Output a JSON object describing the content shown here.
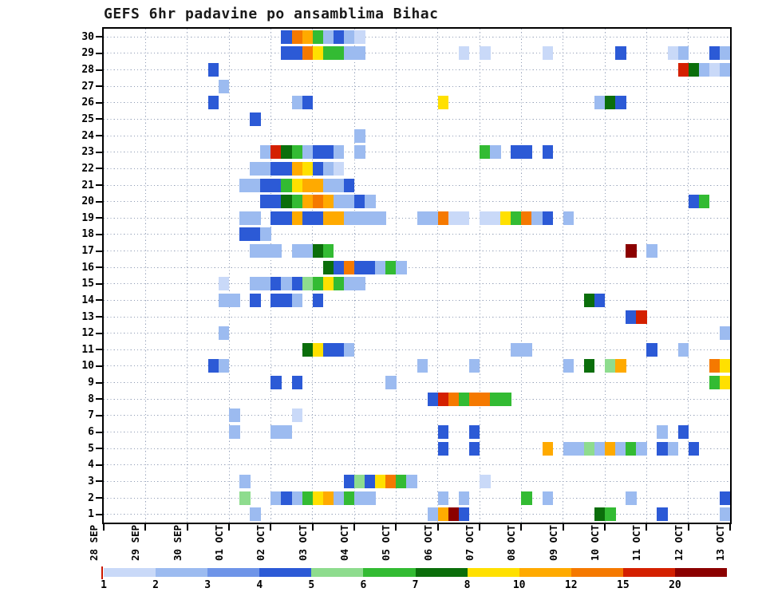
{
  "chart_data": {
    "type": "heatmap",
    "title": "GEFS 6hr padavine po ansamblima Bihac",
    "x_tick_labels": [
      "28 SEP",
      "29 SEP",
      "30 SEP",
      "01 OCT",
      "02 OCT",
      "03 OCT",
      "04 OCT",
      "05 OCT",
      "06 OCT",
      "07 OCT",
      "08 OCT",
      "09 OCT",
      "10 OCT",
      "11 OCT",
      "12 OCT",
      "13 OCT"
    ],
    "y_tick_labels": [
      "30",
      "29",
      "28",
      "27",
      "26",
      "25",
      "24",
      "23",
      "22",
      "21",
      "20",
      "19",
      "18",
      "17",
      "16",
      "15",
      "14",
      "13",
      "12",
      "11",
      "10",
      "9",
      "8",
      "7",
      "6",
      "5",
      "4",
      "3",
      "2",
      "1"
    ],
    "steps_per_day": 4,
    "n_time_steps": 60,
    "grid": "dotted",
    "colorbar": {
      "tick_labels": [
        "1",
        "2",
        "3",
        "4",
        "5",
        "6",
        "7",
        "8",
        "10",
        "12",
        "15",
        "20"
      ],
      "thresholds": [
        1,
        2,
        3,
        4,
        5,
        6,
        7,
        8,
        10,
        12,
        15,
        20
      ],
      "colors": [
        "#c9d9f8",
        "#9cbbf0",
        "#6e94e8",
        "#2c5ad6",
        "#8edc8e",
        "#33bb33",
        "#0b6e0b",
        "#ffe000",
        "#ffaa00",
        "#f57900",
        "#d42000",
        "#8b0000"
      ]
    },
    "cells": [
      [
        30,
        17,
        4
      ],
      [
        30,
        18,
        12
      ],
      [
        30,
        19,
        10
      ],
      [
        30,
        20,
        6
      ],
      [
        30,
        21,
        2
      ],
      [
        30,
        22,
        4
      ],
      [
        30,
        23,
        2
      ],
      [
        30,
        24,
        1
      ],
      [
        29,
        17,
        4
      ],
      [
        29,
        18,
        4
      ],
      [
        29,
        19,
        12
      ],
      [
        29,
        20,
        8
      ],
      [
        29,
        21,
        6
      ],
      [
        29,
        22,
        6
      ],
      [
        29,
        23,
        2
      ],
      [
        29,
        24,
        2
      ],
      [
        29,
        34,
        1
      ],
      [
        29,
        36,
        1
      ],
      [
        29,
        42,
        1
      ],
      [
        29,
        49,
        4
      ],
      [
        29,
        54,
        1
      ],
      [
        29,
        55,
        2
      ],
      [
        29,
        58,
        4
      ],
      [
        29,
        59,
        2
      ],
      [
        28,
        10,
        4
      ],
      [
        28,
        55,
        15
      ],
      [
        28,
        56,
        7
      ],
      [
        28,
        57,
        2
      ],
      [
        28,
        58,
        1
      ],
      [
        28,
        59,
        2
      ],
      [
        27,
        11,
        2
      ],
      [
        26,
        10,
        4
      ],
      [
        26,
        18,
        2
      ],
      [
        26,
        19,
        4
      ],
      [
        26,
        32,
        8
      ],
      [
        26,
        47,
        2
      ],
      [
        26,
        48,
        7
      ],
      [
        26,
        49,
        4
      ],
      [
        25,
        14,
        4
      ],
      [
        24,
        24,
        2
      ],
      [
        23,
        15,
        2
      ],
      [
        23,
        16,
        15
      ],
      [
        23,
        17,
        7
      ],
      [
        23,
        18,
        6
      ],
      [
        23,
        19,
        2
      ],
      [
        23,
        20,
        4
      ],
      [
        23,
        21,
        4
      ],
      [
        23,
        22,
        2
      ],
      [
        23,
        24,
        2
      ],
      [
        23,
        36,
        6
      ],
      [
        23,
        37,
        2
      ],
      [
        23,
        39,
        4
      ],
      [
        23,
        40,
        4
      ],
      [
        23,
        42,
        4
      ],
      [
        22,
        14,
        2
      ],
      [
        22,
        15,
        2
      ],
      [
        22,
        16,
        4
      ],
      [
        22,
        17,
        4
      ],
      [
        22,
        18,
        10
      ],
      [
        22,
        19,
        8
      ],
      [
        22,
        20,
        4
      ],
      [
        22,
        21,
        2
      ],
      [
        22,
        22,
        1
      ],
      [
        21,
        13,
        2
      ],
      [
        21,
        14,
        2
      ],
      [
        21,
        15,
        4
      ],
      [
        21,
        16,
        4
      ],
      [
        21,
        17,
        6
      ],
      [
        21,
        18,
        8
      ],
      [
        21,
        19,
        10
      ],
      [
        21,
        20,
        10
      ],
      [
        21,
        21,
        2
      ],
      [
        21,
        22,
        2
      ],
      [
        21,
        23,
        4
      ],
      [
        20,
        15,
        4
      ],
      [
        20,
        16,
        4
      ],
      [
        20,
        17,
        7
      ],
      [
        20,
        18,
        6
      ],
      [
        20,
        19,
        10
      ],
      [
        20,
        20,
        12
      ],
      [
        20,
        21,
        10
      ],
      [
        20,
        22,
        2
      ],
      [
        20,
        23,
        2
      ],
      [
        20,
        24,
        4
      ],
      [
        20,
        25,
        2
      ],
      [
        20,
        56,
        4
      ],
      [
        20,
        57,
        6
      ],
      [
        19,
        13,
        2
      ],
      [
        19,
        14,
        2
      ],
      [
        19,
        16,
        4
      ],
      [
        19,
        17,
        4
      ],
      [
        19,
        18,
        10
      ],
      [
        19,
        19,
        4
      ],
      [
        19,
        20,
        4
      ],
      [
        19,
        21,
        10
      ],
      [
        19,
        22,
        10
      ],
      [
        19,
        23,
        2
      ],
      [
        19,
        24,
        2
      ],
      [
        19,
        25,
        2
      ],
      [
        19,
        26,
        2
      ],
      [
        19,
        30,
        2
      ],
      [
        19,
        31,
        2
      ],
      [
        19,
        32,
        12
      ],
      [
        19,
        33,
        1
      ],
      [
        19,
        34,
        1
      ],
      [
        19,
        36,
        1
      ],
      [
        19,
        37,
        1
      ],
      [
        19,
        38,
        8
      ],
      [
        19,
        39,
        6
      ],
      [
        19,
        40,
        12
      ],
      [
        19,
        41,
        2
      ],
      [
        19,
        42,
        4
      ],
      [
        19,
        44,
        2
      ],
      [
        18,
        13,
        4
      ],
      [
        18,
        14,
        4
      ],
      [
        18,
        15,
        2
      ],
      [
        17,
        14,
        2
      ],
      [
        17,
        15,
        2
      ],
      [
        17,
        16,
        2
      ],
      [
        17,
        18,
        2
      ],
      [
        17,
        19,
        2
      ],
      [
        17,
        20,
        7
      ],
      [
        17,
        21,
        6
      ],
      [
        17,
        50,
        20
      ],
      [
        17,
        52,
        2
      ],
      [
        16,
        21,
        7
      ],
      [
        16,
        22,
        4
      ],
      [
        16,
        23,
        12
      ],
      [
        16,
        24,
        4
      ],
      [
        16,
        25,
        4
      ],
      [
        16,
        26,
        2
      ],
      [
        16,
        27,
        6
      ],
      [
        16,
        28,
        2
      ],
      [
        15,
        11,
        1
      ],
      [
        15,
        14,
        2
      ],
      [
        15,
        15,
        2
      ],
      [
        15,
        16,
        4
      ],
      [
        15,
        17,
        2
      ],
      [
        15,
        18,
        4
      ],
      [
        15,
        19,
        5
      ],
      [
        15,
        20,
        6
      ],
      [
        15,
        21,
        8
      ],
      [
        15,
        22,
        6
      ],
      [
        15,
        23,
        2
      ],
      [
        15,
        24,
        2
      ],
      [
        14,
        11,
        2
      ],
      [
        14,
        12,
        2
      ],
      [
        14,
        14,
        4
      ],
      [
        14,
        16,
        4
      ],
      [
        14,
        17,
        4
      ],
      [
        14,
        18,
        2
      ],
      [
        14,
        20,
        4
      ],
      [
        14,
        46,
        7
      ],
      [
        14,
        47,
        4
      ],
      [
        13,
        50,
        4
      ],
      [
        13,
        51,
        15
      ],
      [
        12,
        11,
        2
      ],
      [
        12,
        59,
        2
      ],
      [
        11,
        19,
        7
      ],
      [
        11,
        20,
        8
      ],
      [
        11,
        21,
        4
      ],
      [
        11,
        22,
        4
      ],
      [
        11,
        23,
        2
      ],
      [
        11,
        39,
        2
      ],
      [
        11,
        40,
        2
      ],
      [
        11,
        52,
        4
      ],
      [
        11,
        55,
        2
      ],
      [
        10,
        10,
        4
      ],
      [
        10,
        11,
        2
      ],
      [
        10,
        30,
        2
      ],
      [
        10,
        35,
        2
      ],
      [
        10,
        44,
        2
      ],
      [
        10,
        46,
        7
      ],
      [
        10,
        48,
        5
      ],
      [
        10,
        49,
        10
      ],
      [
        10,
        58,
        12
      ],
      [
        10,
        59,
        8
      ],
      [
        9,
        16,
        4
      ],
      [
        9,
        18,
        4
      ],
      [
        9,
        27,
        2
      ],
      [
        9,
        58,
        6
      ],
      [
        9,
        59,
        8
      ],
      [
        8,
        31,
        4
      ],
      [
        8,
        32,
        15
      ],
      [
        8,
        33,
        12
      ],
      [
        8,
        34,
        6
      ],
      [
        8,
        35,
        12
      ],
      [
        8,
        36,
        12
      ],
      [
        8,
        37,
        6
      ],
      [
        8,
        38,
        6
      ],
      [
        7,
        12,
        2
      ],
      [
        7,
        18,
        1
      ],
      [
        6,
        12,
        2
      ],
      [
        6,
        16,
        2
      ],
      [
        6,
        17,
        2
      ],
      [
        6,
        32,
        4
      ],
      [
        6,
        35,
        4
      ],
      [
        6,
        53,
        2
      ],
      [
        6,
        55,
        4
      ],
      [
        5,
        32,
        4
      ],
      [
        5,
        35,
        4
      ],
      [
        5,
        42,
        10
      ],
      [
        5,
        44,
        2
      ],
      [
        5,
        45,
        2
      ],
      [
        5,
        46,
        5
      ],
      [
        5,
        47,
        2
      ],
      [
        5,
        48,
        10
      ],
      [
        5,
        49,
        2
      ],
      [
        5,
        50,
        6
      ],
      [
        5,
        51,
        2
      ],
      [
        5,
        53,
        4
      ],
      [
        5,
        54,
        2
      ],
      [
        5,
        56,
        4
      ],
      [
        3,
        13,
        2
      ],
      [
        3,
        23,
        4
      ],
      [
        3,
        24,
        5
      ],
      [
        3,
        25,
        4
      ],
      [
        3,
        26,
        8
      ],
      [
        3,
        27,
        12
      ],
      [
        3,
        28,
        6
      ],
      [
        3,
        29,
        2
      ],
      [
        3,
        36,
        1
      ],
      [
        2,
        13,
        5
      ],
      [
        2,
        16,
        2
      ],
      [
        2,
        17,
        4
      ],
      [
        2,
        18,
        2
      ],
      [
        2,
        19,
        6
      ],
      [
        2,
        20,
        8
      ],
      [
        2,
        21,
        10
      ],
      [
        2,
        22,
        2
      ],
      [
        2,
        23,
        6
      ],
      [
        2,
        24,
        2
      ],
      [
        2,
        25,
        2
      ],
      [
        2,
        32,
        2
      ],
      [
        2,
        34,
        2
      ],
      [
        2,
        40,
        6
      ],
      [
        2,
        42,
        2
      ],
      [
        2,
        50,
        2
      ],
      [
        2,
        59,
        4
      ],
      [
        1,
        14,
        2
      ],
      [
        1,
        31,
        2
      ],
      [
        1,
        32,
        10
      ],
      [
        1,
        33,
        20
      ],
      [
        1,
        34,
        4
      ],
      [
        1,
        47,
        7
      ],
      [
        1,
        48,
        6
      ],
      [
        1,
        53,
        4
      ],
      [
        1,
        59,
        2
      ]
    ]
  }
}
